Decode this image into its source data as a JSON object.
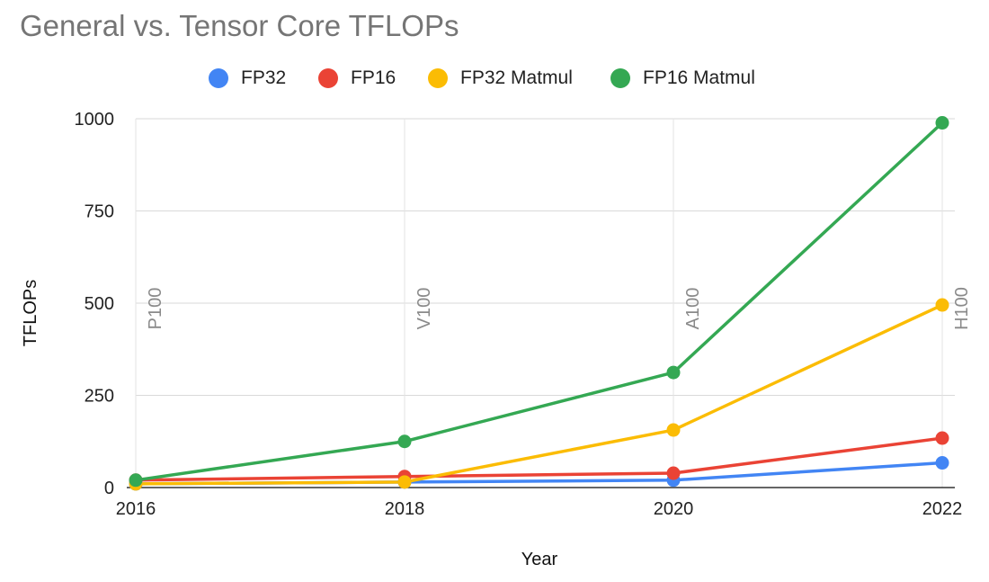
{
  "chart_data": {
    "type": "line",
    "title": "General vs. Tensor Core TFLOPs",
    "xlabel": "Year",
    "ylabel": "TFLOPs",
    "x": [
      2016,
      2018,
      2020,
      2022
    ],
    "xlim": [
      2016,
      2022
    ],
    "ylim": [
      0,
      1000
    ],
    "yticks": [
      0,
      250,
      500,
      750,
      1000
    ],
    "grid": true,
    "legend_position": "top",
    "series": [
      {
        "name": "FP32",
        "color": "#4285F4",
        "values": [
          10,
          15,
          20,
          67
        ]
      },
      {
        "name": "FP16",
        "color": "#EA4335",
        "values": [
          20,
          30,
          39,
          134
        ]
      },
      {
        "name": "FP32 Matmul",
        "color": "#FBBC04",
        "values": [
          10,
          15,
          156,
          495
        ]
      },
      {
        "name": "FP16 Matmul",
        "color": "#34A853",
        "values": [
          20,
          125,
          312,
          989
        ]
      }
    ],
    "annotations": [
      {
        "x": 2016,
        "text": "P100"
      },
      {
        "x": 2018,
        "text": "V100"
      },
      {
        "x": 2020,
        "text": "A100"
      },
      {
        "x": 2022,
        "text": "H100"
      }
    ]
  }
}
